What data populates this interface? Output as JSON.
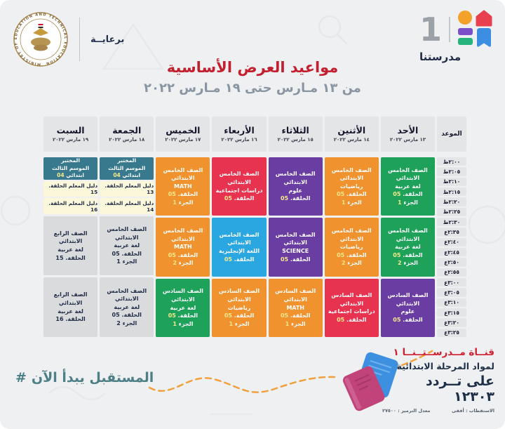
{
  "header": {
    "sponsor_label": "برعايــة",
    "ministry_seal_text": "MINISTRY OF EDUCATION AND TECHNICAL EDUCATION",
    "channel_number": "1",
    "channel_name": "مدرستنا",
    "title": "مواعيد العرض الأساسية",
    "subtitle": "من ١٣ مـارس حتى ١٩ مـارس ٢٠٢٢"
  },
  "schedule": {
    "time_header": "الموعد",
    "times": [
      "٢:٠٠ظ",
      "٢:٠٥ظ",
      "٢:١٠ظ",
      "٢:١٥ظ",
      "٢:٢٠ظ",
      "٢:٢٥ظ",
      "٢:٣٠ظ",
      "٢:٣٥ع",
      "٢:٤٠ع",
      "٢:٤٥ع",
      "٢:٥٠ع",
      "٢:٥٥ع",
      "٣:٠٠ع",
      "٣:٠٥ع",
      "٣:١٠ع",
      "٣:١٥ع",
      "٣:٢٠ع",
      "٣:٢٥ع"
    ],
    "days": [
      {
        "name": "الأحد",
        "date": "١٣ مارس ٢٠٢٢",
        "blocks": [
          {
            "type": "class",
            "color": "green",
            "grade": "الصف الخامس الابتدائي",
            "subject": "لغة عربية",
            "episode_label": "الحلقة.",
            "episode": "05",
            "part_label": "الجزء",
            "part": "1"
          },
          {
            "type": "class",
            "color": "green",
            "grade": "الصف الخامس الابتدائي",
            "subject": "لغة عربية",
            "episode_label": "الحلقة.",
            "episode": "05",
            "part_label": "الجزء",
            "part": "2"
          },
          {
            "type": "class",
            "color": "purple",
            "grade": "الصف السادس الابتدائي",
            "subject": "علوم",
            "episode_label": "الحلقة.",
            "episode": "05"
          }
        ]
      },
      {
        "name": "الأثنين",
        "date": "١٤ مارس ٢٠٢٢",
        "blocks": [
          {
            "type": "class",
            "color": "orange",
            "grade": "الصف الخامس الابتدائي",
            "subject": "رياضيات",
            "episode_label": "الحلقة.",
            "episode": "05",
            "part_label": "الجزء",
            "part": "1"
          },
          {
            "type": "class",
            "color": "orange",
            "grade": "الصف الخامس الابتدائي",
            "subject": "رياضيات",
            "episode_label": "الحلقة.",
            "episode": "05",
            "part_label": "الجزء",
            "part": "2"
          },
          {
            "type": "class",
            "color": "red",
            "grade": "الصف السادس الابتدائي",
            "subject": "دراسات اجتماعية",
            "episode_label": "الحلقة.",
            "episode": "05"
          }
        ]
      },
      {
        "name": "الثلاثاء",
        "date": "١٥ مارس ٢٠٢٢",
        "blocks": [
          {
            "type": "class",
            "color": "purple",
            "grade": "الصف الخامس الابتدائي",
            "subject": "علوم",
            "episode_label": "الحلقة.",
            "episode": "05"
          },
          {
            "type": "class",
            "color": "purple",
            "grade": "الصف الخامس الابتدائي",
            "subject": "SCIENCE",
            "episode_label": "الحلقة.",
            "episode": "05"
          },
          {
            "type": "class",
            "color": "orange",
            "grade": "الصف السادس الابتدائي",
            "subject": "MATH",
            "episode_label": "الحلقة.",
            "episode": "05",
            "part_label": "الجزء",
            "part": "1"
          }
        ]
      },
      {
        "name": "الأربعاء",
        "date": "١٦ مارس ٢٠٢٢",
        "blocks": [
          {
            "type": "class",
            "color": "red",
            "grade": "الصف الخامس الابتدائي",
            "subject": "دراسات اجتماعية",
            "episode_label": "الحلقة.",
            "episode": "05"
          },
          {
            "type": "class",
            "color": "blue",
            "grade": "الصف الخامس الابتدائي",
            "subject": "اللغة الإنجليزية",
            "episode_label": "الحلقة.",
            "episode": "05"
          },
          {
            "type": "class",
            "color": "orange",
            "grade": "الصف السادس الابتدائي",
            "subject": "رياضيات",
            "episode_label": "الحلقة.",
            "episode": "05",
            "part_label": "الجزء",
            "part": "1"
          }
        ]
      },
      {
        "name": "الخميس",
        "date": "١٧ مارس ٢٠٢٢",
        "blocks": [
          {
            "type": "class",
            "color": "orange",
            "grade": "الصف الخامس الابتدائي",
            "subject": "MATH",
            "episode_label": "الحلقة.",
            "episode": "05",
            "part_label": "الجزء",
            "part": "1"
          },
          {
            "type": "class",
            "color": "orange",
            "grade": "الصف الخامس الابتدائي",
            "subject": "MATH",
            "episode_label": "الحلقة.",
            "episode": "05",
            "part_label": "الجزء",
            "part": "2"
          },
          {
            "type": "class",
            "color": "green",
            "grade": "الصف السادس الابتدائي",
            "subject": "لغة عربية",
            "episode_label": "الحلقة.",
            "episode": "05",
            "part_label": "الجزء",
            "part": "1"
          }
        ]
      },
      {
        "name": "الجمعة",
        "date": "١٨ مارس ٢٠٢٢",
        "blocks": [
          {
            "type": "stack",
            "cells": [
              {
                "kind": "lab",
                "lines": [
                  "المختبر",
                  "الموسم الثالث"
                ],
                "tail_label": "ابتدائي",
                "tail_num": "04"
              },
              {
                "kind": "guide",
                "text": "دليل المعلم الحلقة. 13"
              },
              {
                "kind": "guide",
                "text": "دليل المعلم الحلقة. 14"
              }
            ]
          },
          {
            "type": "class",
            "color": "gray",
            "grade": "الصف الخامس الابتدائي",
            "subject": "لغة عربية",
            "episode_label": "الحلقة.",
            "episode": "05",
            "part_label": "الجزء",
            "part": "1"
          },
          {
            "type": "class",
            "color": "gray",
            "grade": "الصف الخامس الابتدائي",
            "subject": "لغة عربية",
            "episode_label": "الحلقة.",
            "episode": "05",
            "part_label": "الجزء",
            "part": "2"
          }
        ]
      },
      {
        "name": "السبت",
        "date": "١٩ مارس ٢٠٢٢",
        "blocks": [
          {
            "type": "stack",
            "cells": [
              {
                "kind": "lab",
                "lines": [
                  "المختبر",
                  "الموسم الثالث"
                ],
                "tail_label": "ابتدائي",
                "tail_num": "04"
              },
              {
                "kind": "guide",
                "text": "دليل المعلم الحلقة. 15"
              },
              {
                "kind": "guide",
                "text": "دليل المعلم الحلقة. 16"
              }
            ]
          },
          {
            "type": "class",
            "color": "gray",
            "grade": "الصف الرابع الابتدائي",
            "subject": "لغة عربية",
            "episode_label": "الحلقة.",
            "episode": "15"
          },
          {
            "type": "class",
            "color": "gray",
            "grade": "الصف الرابع الابتدائي",
            "subject": "لغة عربية",
            "episode_label": "الحلقة.",
            "episode": "16"
          }
        ]
      }
    ]
  },
  "footer": {
    "hashtag_symbol": "#",
    "slogan": "المستقبل يبدأ الآن",
    "channel_line": "قنــاة مــدرســتــنــا ١",
    "audience_line": "لمواد المرحلة الابتدائية",
    "frequency_line": "على تــردد ١٢٣٠٣",
    "tech_polarization": "الاستقطاب : أفقى",
    "tech_symbol_rate": "معدل الترميز : ٢٧٥٠٠"
  },
  "colors": {
    "green": "#1ea25a",
    "orange": "#f0922d",
    "purple": "#6a3da2",
    "red": "#e83350",
    "blue": "#2aa7e1",
    "teal": "#38798e",
    "guide_bg": "#fbf7da",
    "gray": "#d9dbdd",
    "accent_number": "#f7e98c",
    "title_red": "#c3202f",
    "navy": "#1f2b45",
    "hashtag_teal": "#4d7f86",
    "dashed_orange": "#f0a13e"
  }
}
